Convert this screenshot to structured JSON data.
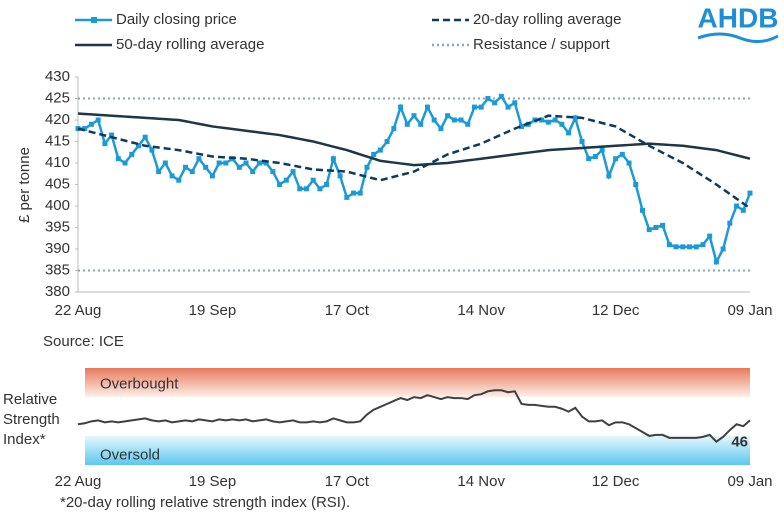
{
  "logo": "AHDB",
  "chart_data": [
    {
      "type": "line",
      "y_label": "£ per tonne",
      "source": "Source: ICE",
      "categories": [
        "22 Aug",
        null,
        null,
        null,
        null,
        null,
        null,
        null,
        null,
        null,
        null,
        null,
        null,
        null,
        null,
        null,
        null,
        null,
        null,
        null,
        "19 Sep",
        null,
        null,
        null,
        null,
        null,
        null,
        null,
        null,
        null,
        null,
        null,
        null,
        null,
        null,
        null,
        null,
        null,
        null,
        null,
        "17 Oct",
        null,
        null,
        null,
        null,
        null,
        null,
        null,
        null,
        null,
        null,
        null,
        null,
        null,
        null,
        null,
        null,
        null,
        null,
        null,
        "14 Nov",
        null,
        null,
        null,
        null,
        null,
        null,
        null,
        null,
        null,
        null,
        null,
        null,
        null,
        null,
        null,
        null,
        null,
        null,
        null,
        "12 Dec",
        null,
        null,
        null,
        null,
        null,
        null,
        null,
        null,
        null,
        null,
        null,
        null,
        null,
        null,
        null,
        null,
        null,
        null,
        null,
        "09 Jan"
      ],
      "ylim": [
        380,
        430
      ],
      "yticks": [
        380,
        385,
        390,
        395,
        400,
        405,
        410,
        415,
        420,
        425,
        430
      ],
      "grid": false,
      "series": [
        {
          "name": "Daily closing price",
          "color": "#1b9ad6",
          "style": "solid",
          "marker": "square",
          "values": [
            418,
            418,
            419,
            420,
            414.5,
            416.5,
            411,
            410,
            412,
            414,
            416,
            413,
            408,
            410,
            407,
            406,
            409,
            408,
            411,
            409,
            407,
            410,
            410,
            411,
            409,
            410,
            408,
            410,
            410,
            408,
            405,
            406,
            408,
            404,
            404,
            406,
            404,
            405,
            411,
            407,
            402,
            403,
            403,
            409,
            412,
            413,
            415,
            418,
            423,
            419,
            421,
            419,
            423,
            420,
            418,
            421,
            420,
            420,
            419,
            423,
            423,
            425,
            424,
            425.5,
            423,
            424,
            418.5,
            419,
            420,
            420,
            419.5,
            420,
            419,
            417,
            420.5,
            415,
            411,
            411.5,
            413,
            407,
            411,
            412,
            410,
            405,
            399,
            394.5,
            395,
            395.5,
            391,
            390.5,
            390.5,
            390.5,
            390.5,
            391,
            393,
            387,
            390,
            396,
            400,
            399,
            403
          ]
        },
        {
          "name": "20-day rolling average",
          "color": "#0d3b5e",
          "style": "dashed",
          "marker": "none",
          "values": [
            418,
            417.6,
            417.2,
            416.8,
            416.4,
            416,
            415.6,
            415.2,
            414.8,
            414.4,
            414,
            413.8,
            413.6,
            413.4,
            413.2,
            413,
            412.7,
            412.4,
            412.1,
            411.8,
            411.5,
            411.4,
            411.3,
            411.2,
            411.1,
            411,
            410.8,
            410.6,
            410.4,
            410.2,
            410,
            409.7,
            409.4,
            409.1,
            408.8,
            408.5,
            408.4,
            408.3,
            408.2,
            408.1,
            408,
            407.6,
            407.2,
            406.8,
            406.4,
            406,
            406.4,
            406.8,
            407.2,
            407.6,
            408,
            408.8,
            409.6,
            410.4,
            411.2,
            412,
            412.5,
            413,
            413.5,
            414,
            414.5,
            415.2,
            415.9,
            416.6,
            417.3,
            418,
            418.6,
            419.2,
            419.8,
            420.4,
            421,
            420.9,
            420.8,
            420.7,
            420.6,
            420.5,
            420.1,
            419.7,
            419.3,
            418.9,
            418.5,
            417.6,
            416.7,
            415.8,
            414.9,
            414,
            413.2,
            412.4,
            411.6,
            410.8,
            410,
            409,
            408,
            407,
            406,
            405,
            403.9,
            402.8,
            401.7,
            400.6,
            399.5
          ]
        },
        {
          "name": "50-day rolling average",
          "color": "#1d3649",
          "style": "solid",
          "marker": "none",
          "values": [
            421.5,
            421.4,
            421.3,
            421.2,
            421.1,
            421,
            420.9,
            420.8,
            420.7,
            420.6,
            420.5,
            420.4,
            420.3,
            420.2,
            420.1,
            420,
            419.7,
            419.4,
            419.1,
            418.8,
            418.5,
            418.3,
            418.1,
            417.9,
            417.7,
            417.5,
            417.3,
            417.1,
            416.9,
            416.7,
            416.5,
            416.2,
            415.9,
            415.6,
            415.3,
            415,
            414.6,
            414.2,
            413.8,
            413.4,
            413,
            412.5,
            412,
            411.5,
            411,
            410.5,
            410.3,
            410.1,
            409.9,
            409.7,
            409.5,
            409.6,
            409.7,
            409.8,
            409.9,
            410,
            410.2,
            410.4,
            410.6,
            410.8,
            411,
            411.2,
            411.4,
            411.6,
            411.8,
            412,
            412.2,
            412.4,
            412.6,
            412.8,
            413,
            413.1,
            413.2,
            413.3,
            413.4,
            413.5,
            413.6,
            413.7,
            413.8,
            413.9,
            414,
            414.1,
            414.2,
            414.3,
            414.4,
            414.5,
            414.4,
            414.3,
            414.2,
            414.1,
            414,
            413.8,
            413.6,
            413.4,
            413.2,
            413,
            412.6,
            412.2,
            411.8,
            411.4,
            411
          ]
        }
      ],
      "reference_lines": {
        "name": "Resistance / support",
        "color": "#8aa5b5",
        "values": [
          425,
          385
        ]
      }
    },
    {
      "type": "line",
      "y_label_lines": [
        "Relative",
        "Strength",
        "Index*"
      ],
      "footnote": "*20-day rolling relative strength index (RSI).",
      "categories": [
        "22 Aug",
        null,
        null,
        null,
        null,
        null,
        null,
        null,
        null,
        null,
        null,
        null,
        null,
        null,
        null,
        null,
        null,
        null,
        null,
        null,
        "19 Sep",
        null,
        null,
        null,
        null,
        null,
        null,
        null,
        null,
        null,
        null,
        null,
        null,
        null,
        null,
        null,
        null,
        null,
        null,
        null,
        "17 Oct",
        null,
        null,
        null,
        null,
        null,
        null,
        null,
        null,
        null,
        null,
        null,
        null,
        null,
        null,
        null,
        null,
        null,
        null,
        null,
        "14 Nov",
        null,
        null,
        null,
        null,
        null,
        null,
        null,
        null,
        null,
        null,
        null,
        null,
        null,
        null,
        null,
        null,
        null,
        null,
        null,
        "12 Dec",
        null,
        null,
        null,
        null,
        null,
        null,
        null,
        null,
        null,
        null,
        null,
        null,
        null,
        null,
        null,
        null,
        null,
        null,
        null,
        "09 Jan"
      ],
      "ylim": [
        0,
        100
      ],
      "zones": [
        {
          "label": "Overbought",
          "range": [
            70,
            100
          ],
          "color": "#e8795a"
        },
        {
          "label": "Oversold",
          "range": [
            0,
            30
          ],
          "color": "#5bc8ef"
        }
      ],
      "series": [
        {
          "color": "#404040",
          "values": [
            42,
            43,
            45,
            46,
            44,
            45,
            44,
            45,
            46,
            47,
            48,
            46,
            45,
            46,
            44,
            45,
            46,
            45,
            47,
            46,
            45,
            47,
            46,
            47,
            46,
            47,
            45,
            46,
            47,
            45,
            44,
            45,
            46,
            44,
            44,
            45,
            44,
            45,
            48,
            46,
            44,
            44,
            45,
            52,
            57,
            60,
            63,
            66,
            69,
            67,
            70,
            69,
            72,
            70,
            68,
            70,
            69,
            69,
            68,
            72,
            73,
            76,
            77,
            77,
            75,
            76,
            63,
            62,
            62,
            61,
            60,
            60,
            58,
            55,
            59,
            50,
            45,
            45,
            46,
            41,
            44,
            44,
            42,
            38,
            34,
            30,
            31,
            31,
            28,
            28,
            28,
            28,
            28,
            29,
            31,
            24,
            29,
            36,
            42,
            40,
            46
          ],
          "end_label": true
        }
      ]
    }
  ]
}
